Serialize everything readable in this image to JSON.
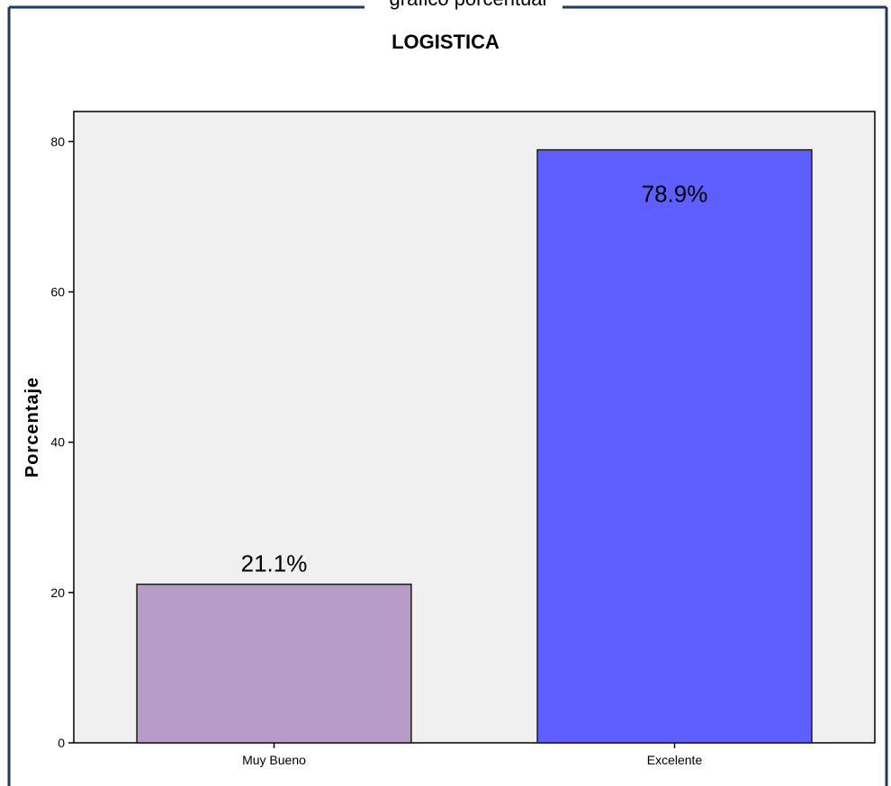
{
  "header_caption": "gráfico porcentual",
  "chart_data": {
    "type": "bar",
    "title": "LOGISTICA",
    "xlabel": "",
    "ylabel": "Porcentaje",
    "categories": [
      "Muy Bueno",
      "Excelente"
    ],
    "values": [
      21.1,
      78.9
    ],
    "value_labels": [
      "21.1%",
      "78.9%"
    ],
    "ylim": [
      0,
      84
    ],
    "yticks": [
      0,
      20,
      40,
      60,
      80
    ],
    "ytick_labels": [
      "0",
      "20",
      "40",
      "60",
      "80"
    ],
    "bar_colors": [
      "#b79bc8",
      "#5f5fff"
    ],
    "plot_background": "#f0f0f0",
    "grid": false,
    "legend": "none"
  },
  "colors": {
    "frame": "#1f3a5f",
    "bar_outline": "#1a1a1a",
    "axis": "#000000"
  }
}
